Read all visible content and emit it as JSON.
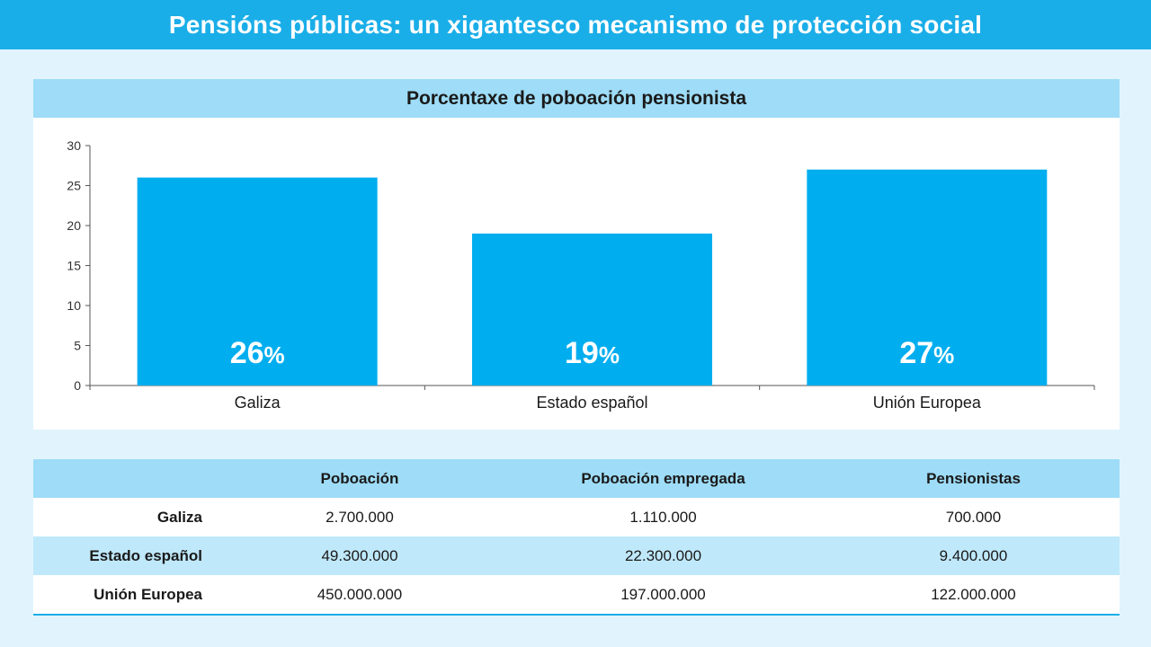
{
  "header": {
    "title": "Pensións públicas: un xigantesco mecanismo de protección social"
  },
  "chart_data": {
    "type": "bar",
    "title": "Porcentaxe de poboación pensionista",
    "categories": [
      "Galiza",
      "Estado español",
      "Unión Europea"
    ],
    "values": [
      26,
      19,
      27
    ],
    "data_labels": [
      "26",
      "19",
      "27"
    ],
    "label_unit": "%",
    "xlabel": "",
    "ylabel": "",
    "ylim": [
      0,
      30
    ],
    "yticks": [
      0,
      5,
      10,
      15,
      20,
      25,
      30
    ],
    "grid": false,
    "bar_color": "#00aeef",
    "label_color": "#ffffff"
  },
  "table": {
    "columns": [
      "",
      "Poboación",
      "Poboación empregada",
      "Pensionistas"
    ],
    "rows": [
      [
        "Galiza",
        "2.700.000",
        "1.110.000",
        "700.000"
      ],
      [
        "Estado español",
        "49.300.000",
        "22.300.000",
        "9.400.000"
      ],
      [
        "Unión Europea",
        "450.000.000",
        "197.000.000",
        "122.000.000"
      ]
    ]
  },
  "colors": {
    "accent": "#1aaee8",
    "header_band": "#9edcf7",
    "background": "#e1f4fd"
  }
}
